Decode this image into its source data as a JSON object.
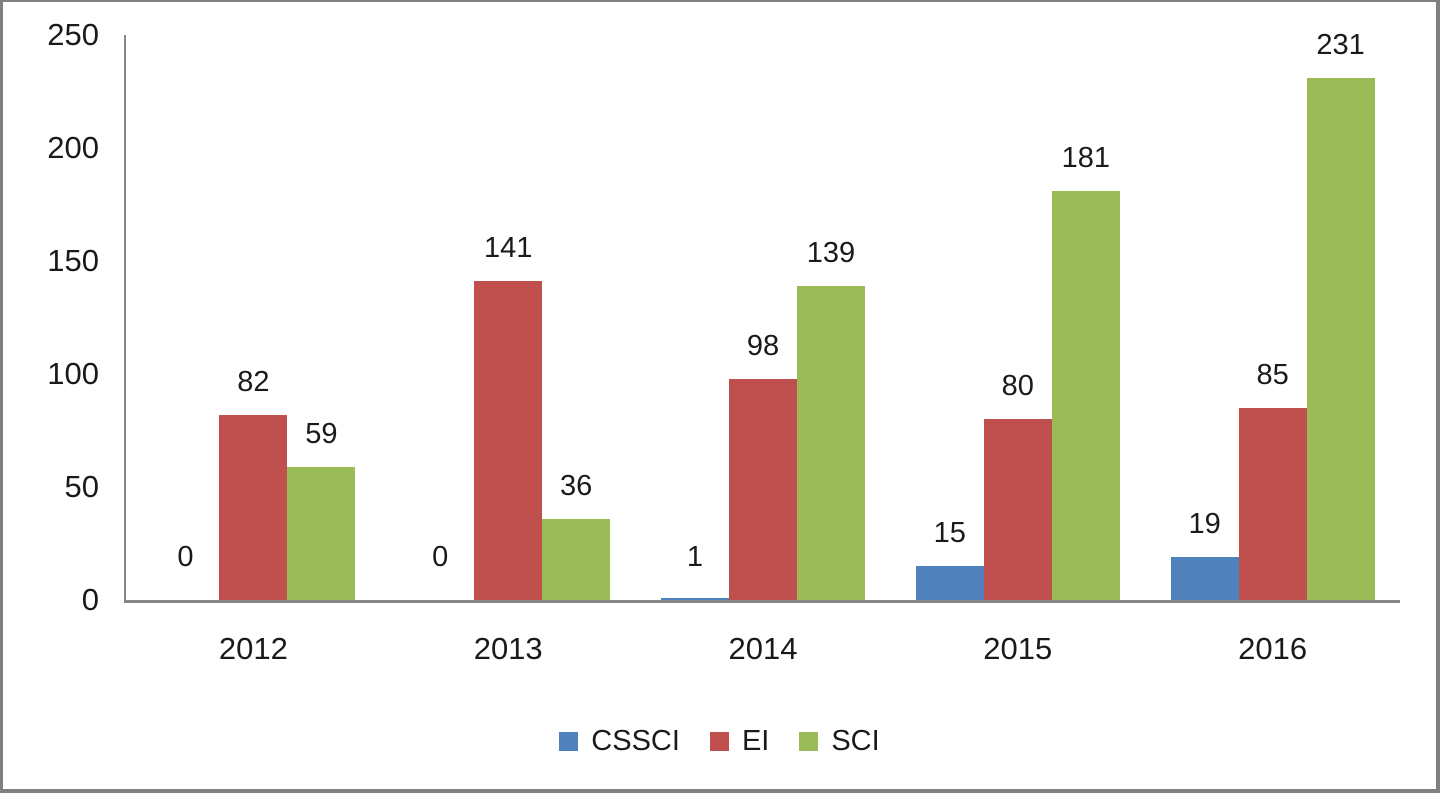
{
  "chart_data": {
    "type": "bar",
    "title": "",
    "categories": [
      "2012",
      "2013",
      "2014",
      "2015",
      "2016"
    ],
    "series": [
      {
        "name": "CSSCI",
        "color": "#4F81BD",
        "values": [
          0,
          0,
          1,
          15,
          19
        ]
      },
      {
        "name": "EI",
        "color": "#C0504D",
        "values": [
          82,
          141,
          98,
          80,
          85
        ]
      },
      {
        "name": "SCI",
        "color": "#9BBB59",
        "values": [
          59,
          36,
          139,
          181,
          231
        ]
      }
    ],
    "ylim": [
      0,
      250
    ],
    "yticks": [
      0,
      50,
      100,
      150,
      200,
      250
    ],
    "grid": false,
    "legend_position": "bottom",
    "data_labels": true
  },
  "style": {
    "frame_border_color": "#808080",
    "axis_color": "#868686",
    "label_color": "#1a1a1a",
    "background": "#FFFFFF"
  }
}
